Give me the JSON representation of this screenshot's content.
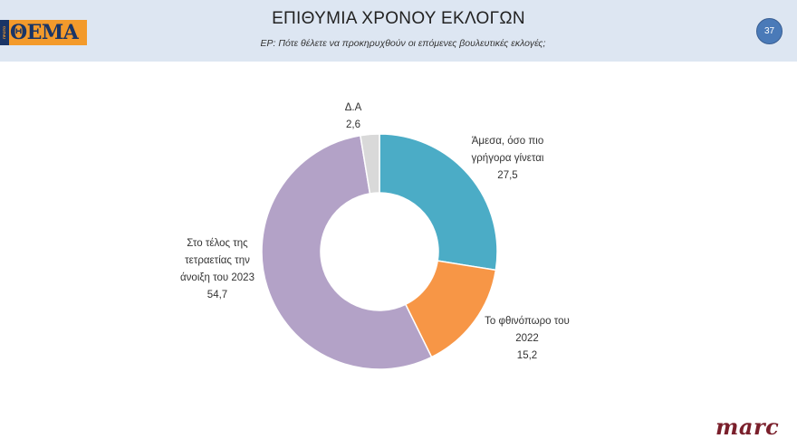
{
  "header": {
    "logo_text": "ΘΕΜΑ",
    "logo_strip_text": "ΠΡΩΤΟ",
    "title": "ΕΠΙΘΥΜΙΑ ΧΡΟΝΟΥ ΕΚΛΟΓΩΝ",
    "subtitle": "ΕΡ:  Πότε θέλετε να προκηρυχθούν οι επόμενες βουλευτικές εκλογές;",
    "page_number": "37"
  },
  "footer": {
    "brand": "marc"
  },
  "colors": {
    "header_bg": "#dde6f2",
    "immediately": "#4bacc6",
    "autumn_2022": "#f79646",
    "end_of_term": "#b3a2c7",
    "dk_na": "#d9d9d9"
  },
  "labels": [
    {
      "lines": [
        "Δ.Α",
        "2,6"
      ]
    },
    {
      "lines": [
        "Άμεσα, όσο πιο",
        "γρήγορα γίνεται",
        "27,5"
      ]
    },
    {
      "lines": [
        "Το φθινόπωρο του",
        "2022",
        "15,2"
      ]
    },
    {
      "lines": [
        "Στο τέλος της",
        "τετραετίας την",
        "άνοιξη του 2023",
        "54,7"
      ]
    }
  ],
  "chart_data": {
    "type": "pie",
    "subtype": "donut",
    "title": "ΕΠΙΘΥΜΙΑ ΧΡΟΝΟΥ ΕΚΛΟΓΩΝ",
    "subtitle": "ΕΡ: Πότε θέλετε να προκηρυχθούν οι επόμενες βουλευτικές εκλογές;",
    "categories": [
      "Άμεσα, όσο πιο γρήγορα γίνεται",
      "Το φθινόπωρο του 2022",
      "Στο τέλος της τετραετίας την άνοιξη του 2023",
      "Δ.Α"
    ],
    "values": [
      27.5,
      15.2,
      54.7,
      2.6
    ],
    "colors": [
      "#4bacc6",
      "#f79646",
      "#b3a2c7",
      "#d9d9d9"
    ],
    "start_angle_deg": 0,
    "direction": "clockwise",
    "legend": "none (data labels outside)"
  }
}
